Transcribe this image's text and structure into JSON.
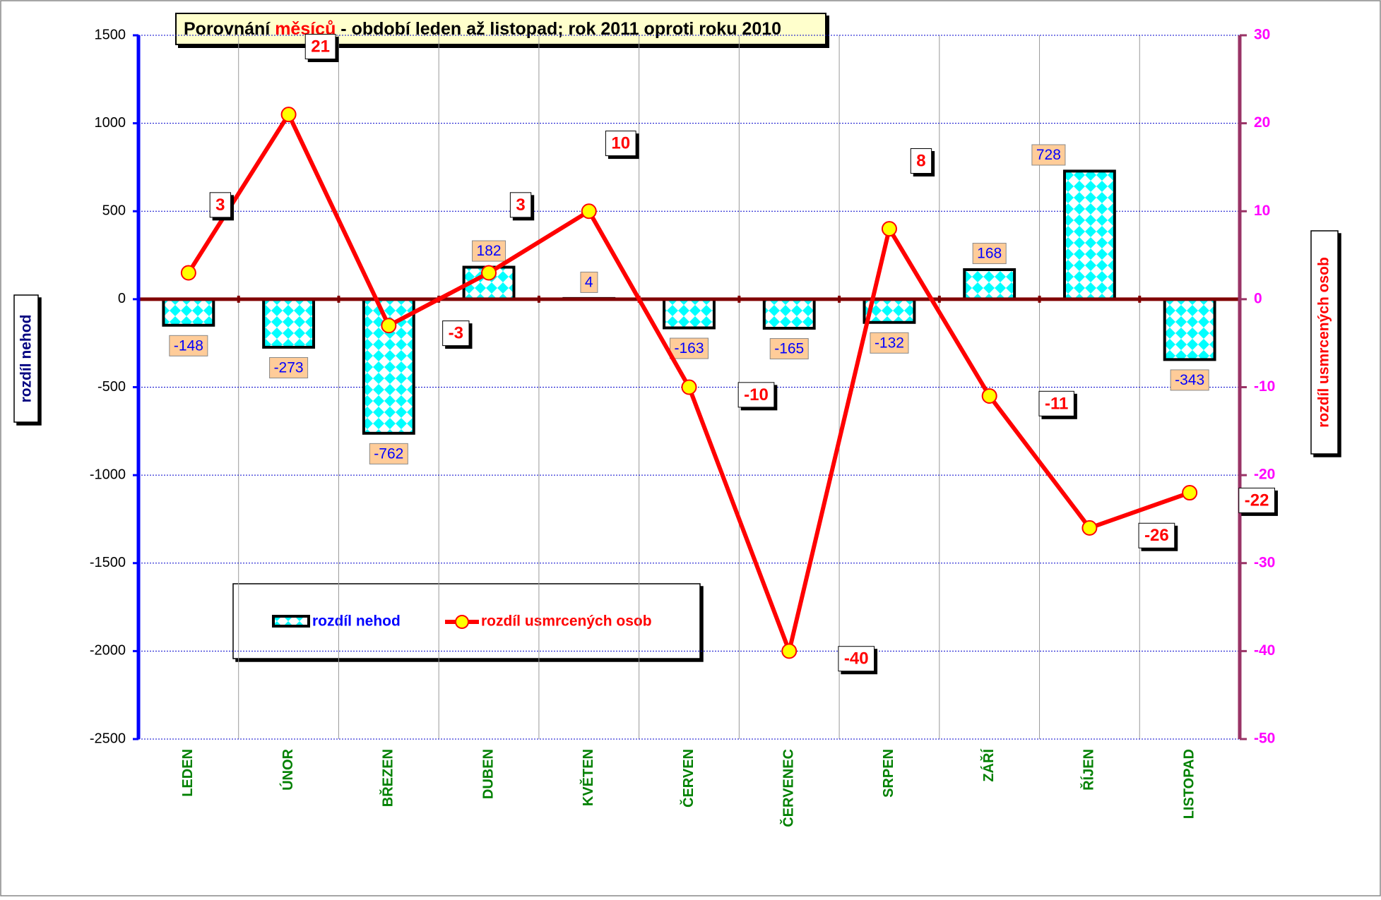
{
  "chart_data": {
    "type": "bar",
    "title": [
      "Porovnání ",
      "měsíců",
      " - období  leden až listopad; rok 2011 oproti roku 2010"
    ],
    "title_colors": [
      "#000000",
      "#ff0000",
      "#000000"
    ],
    "y_label": "rozdíl nehod",
    "y2_label": "rozdíl usmrcených osob",
    "categories": [
      "LEDEN",
      "ÚNOR",
      "BŘEZEN",
      "DUBEN",
      "KVĚTEN",
      "ČERVEN",
      "ČERVENEC",
      "SRPEN",
      "ZÁŘÍ",
      "ŘÍJEN",
      "LISTOPAD"
    ],
    "series": [
      {
        "name": "rozdíl nehod",
        "type": "bar",
        "color": "#00ffff",
        "values": [
          -148,
          -273,
          -762,
          182,
          4,
          -163,
          -165,
          -132,
          168,
          728,
          -343
        ]
      },
      {
        "name": "rozdíl usmrcených osob",
        "type": "line",
        "axis": "y2",
        "color": "#ff0000",
        "marker_color": "#ffff00",
        "values": [
          3,
          21,
          -3,
          3,
          10,
          -10,
          -40,
          8,
          -11,
          -26,
          -22
        ]
      }
    ],
    "ylim": [
      -2500,
      1500
    ],
    "yticks": [
      -2500,
      -2000,
      -1500,
      -1000,
      -500,
      0,
      500,
      1000,
      1500
    ],
    "y2lim": [
      -50,
      30
    ],
    "y2ticks": [
      -50,
      -40,
      -30,
      -20,
      -10,
      0,
      10,
      20,
      30
    ],
    "grid": true
  }
}
